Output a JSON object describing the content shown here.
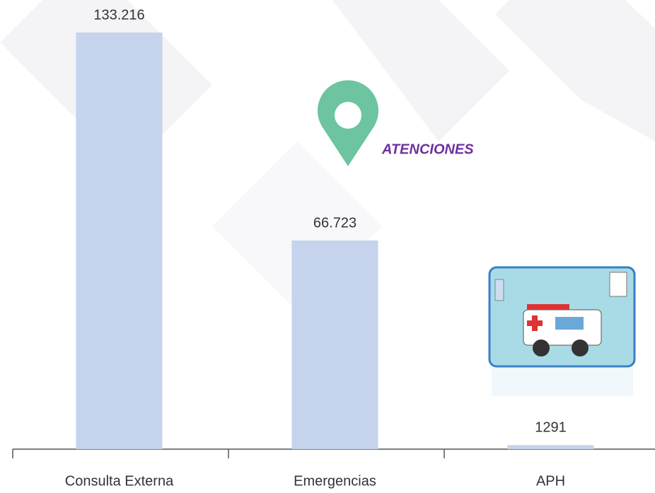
{
  "chart_data": {
    "type": "bar",
    "title": "ATENCIONES",
    "categories": [
      "Consulta Externa",
      "Emergencias",
      "APH"
    ],
    "values": [
      133216,
      66723,
      1291
    ],
    "value_labels": [
      "133.216",
      "66.723",
      "1291"
    ],
    "color": "#c5d3ec",
    "ylim": [
      0,
      140000
    ]
  }
}
